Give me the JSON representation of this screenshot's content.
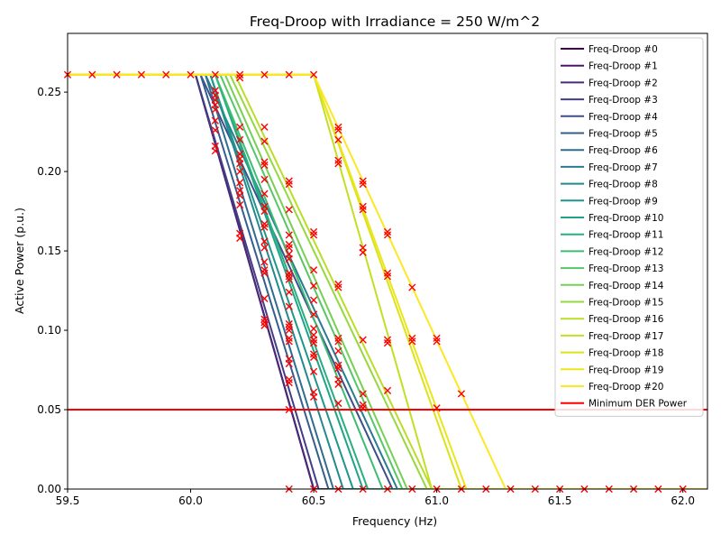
{
  "chart_data": {
    "type": "line",
    "title": "Freq-Droop with Irradiance = 250 W/m^2",
    "xlabel": "Frequency (Hz)",
    "ylabel": "Active Power (p.u.)",
    "xlim": [
      59.5,
      62.1
    ],
    "ylim": [
      0.0,
      0.287
    ],
    "xticks": [
      59.5,
      60.0,
      60.5,
      61.0,
      61.5,
      62.0
    ],
    "xtick_labels": [
      "59.5",
      "60.0",
      "60.5",
      "61.0",
      "61.5",
      "62.0"
    ],
    "yticks": [
      0.0,
      0.05,
      0.1,
      0.15,
      0.2,
      0.25
    ],
    "ytick_labels": [
      "0.00",
      "0.05",
      "0.10",
      "0.15",
      "0.20",
      "0.25"
    ],
    "grid": false,
    "legend_position": "top-right",
    "p_max": 0.261,
    "series": [
      {
        "name": "Freq-Droop #0",
        "color": "#440154",
        "knee": 60.02,
        "zero": 60.5
      },
      {
        "name": "Freq-Droop #1",
        "color": "#481769",
        "knee": 60.02,
        "zero": 60.5
      },
      {
        "name": "Freq-Droop #2",
        "color": "#472a7a",
        "knee": 60.02,
        "zero": 60.5
      },
      {
        "name": "Freq-Droop #3",
        "color": "#433d84",
        "knee": 60.02,
        "zero": 60.52
      },
      {
        "name": "Freq-Droop #4",
        "color": "#3d4e8a",
        "knee": 60.04,
        "zero": 60.82
      },
      {
        "name": "Freq-Droop #5",
        "color": "#355e8d",
        "knee": 60.04,
        "zero": 60.56
      },
      {
        "name": "Freq-Droop #6",
        "color": "#2e6d8e",
        "knee": 60.06,
        "zero": 60.58
      },
      {
        "name": "Freq-Droop #7",
        "color": "#297b8e",
        "knee": 60.06,
        "zero": 60.84
      },
      {
        "name": "Freq-Droop #8",
        "color": "#23898e",
        "knee": 60.08,
        "zero": 60.62
      },
      {
        "name": "Freq-Droop #9",
        "color": "#1f968b",
        "knee": 60.08,
        "zero": 60.66
      },
      {
        "name": "Freq-Droop #10",
        "color": "#20a386",
        "knee": 60.1,
        "zero": 60.7
      },
      {
        "name": "Freq-Droop #11",
        "color": "#29af7f",
        "knee": 60.1,
        "zero": 60.72
      },
      {
        "name": "Freq-Droop #12",
        "color": "#3dbc74",
        "knee": 60.1,
        "zero": 60.78
      },
      {
        "name": "Freq-Droop #13",
        "color": "#56c667",
        "knee": 60.12,
        "zero": 60.86
      },
      {
        "name": "Freq-Droop #14",
        "color": "#75d054",
        "knee": 60.14,
        "zero": 60.88
      },
      {
        "name": "Freq-Droop #15",
        "color": "#95d840",
        "knee": 60.16,
        "zero": 60.96
      },
      {
        "name": "Freq-Droop #16",
        "color": "#bade28",
        "knee": 60.18,
        "zero": 60.98
      },
      {
        "name": "Freq-Droop #17",
        "color": "#c2df23",
        "knee": 60.5,
        "zero": 60.98
      },
      {
        "name": "Freq-Droop #18",
        "color": "#dae319",
        "knee": 60.5,
        "zero": 61.1
      },
      {
        "name": "Freq-Droop #19",
        "color": "#ece51b",
        "knee": 60.5,
        "zero": 61.12
      },
      {
        "name": "Freq-Droop #20",
        "color": "#fde725",
        "knee": 60.5,
        "zero": 61.28
      }
    ],
    "min_power_line": {
      "name": "Minimum DER Power",
      "value": 0.05,
      "color": "#ff0000"
    },
    "marker": {
      "shape": "x",
      "color": "#ff0000"
    },
    "markers": [
      [
        59.5,
        0.261
      ],
      [
        59.6,
        0.261
      ],
      [
        59.7,
        0.261
      ],
      [
        59.8,
        0.261
      ],
      [
        59.9,
        0.261
      ],
      [
        60.0,
        0.261
      ],
      [
        60.1,
        0.261
      ],
      [
        60.2,
        0.261
      ],
      [
        60.2,
        0.259
      ],
      [
        60.3,
        0.261
      ],
      [
        60.4,
        0.261
      ],
      [
        60.5,
        0.261
      ],
      [
        60.1,
        0.251
      ],
      [
        60.1,
        0.248
      ],
      [
        60.1,
        0.245
      ],
      [
        60.1,
        0.242
      ],
      [
        60.1,
        0.239
      ],
      [
        60.1,
        0.232
      ],
      [
        60.1,
        0.226
      ],
      [
        60.1,
        0.216
      ],
      [
        60.1,
        0.213
      ],
      [
        60.2,
        0.228
      ],
      [
        60.2,
        0.22
      ],
      [
        60.2,
        0.211
      ],
      [
        60.2,
        0.208
      ],
      [
        60.2,
        0.205
      ],
      [
        60.2,
        0.2
      ],
      [
        60.2,
        0.193
      ],
      [
        60.2,
        0.188
      ],
      [
        60.2,
        0.185
      ],
      [
        60.2,
        0.179
      ],
      [
        60.2,
        0.161
      ],
      [
        60.2,
        0.158
      ],
      [
        60.3,
        0.228
      ],
      [
        60.3,
        0.219
      ],
      [
        60.3,
        0.206
      ],
      [
        60.3,
        0.204
      ],
      [
        60.3,
        0.195
      ],
      [
        60.3,
        0.186
      ],
      [
        60.3,
        0.178
      ],
      [
        60.3,
        0.175
      ],
      [
        60.3,
        0.167
      ],
      [
        60.3,
        0.165
      ],
      [
        60.3,
        0.156
      ],
      [
        60.3,
        0.152
      ],
      [
        60.3,
        0.143
      ],
      [
        60.3,
        0.138
      ],
      [
        60.3,
        0.136
      ],
      [
        60.3,
        0.12
      ],
      [
        60.3,
        0.107
      ],
      [
        60.3,
        0.105
      ],
      [
        60.3,
        0.103
      ],
      [
        60.4,
        0.194
      ],
      [
        60.4,
        0.192
      ],
      [
        60.4,
        0.176
      ],
      [
        60.4,
        0.16
      ],
      [
        60.4,
        0.154
      ],
      [
        60.4,
        0.152
      ],
      [
        60.4,
        0.148
      ],
      [
        60.4,
        0.145
      ],
      [
        60.4,
        0.136
      ],
      [
        60.4,
        0.134
      ],
      [
        60.4,
        0.132
      ],
      [
        60.4,
        0.124
      ],
      [
        60.4,
        0.115
      ],
      [
        60.4,
        0.104
      ],
      [
        60.4,
        0.102
      ],
      [
        60.4,
        0.1
      ],
      [
        60.4,
        0.095
      ],
      [
        60.4,
        0.093
      ],
      [
        60.4,
        0.082
      ],
      [
        60.4,
        0.079
      ],
      [
        60.4,
        0.069
      ],
      [
        60.4,
        0.067
      ],
      [
        60.4,
        0.05
      ],
      [
        60.4,
        0.0
      ],
      [
        60.5,
        0.162
      ],
      [
        60.5,
        0.16
      ],
      [
        60.5,
        0.138
      ],
      [
        60.5,
        0.128
      ],
      [
        60.5,
        0.119
      ],
      [
        60.5,
        0.11
      ],
      [
        60.5,
        0.101
      ],
      [
        60.5,
        0.097
      ],
      [
        60.5,
        0.094
      ],
      [
        60.5,
        0.092
      ],
      [
        60.5,
        0.085
      ],
      [
        60.5,
        0.083
      ],
      [
        60.5,
        0.074
      ],
      [
        60.5,
        0.061
      ],
      [
        60.5,
        0.058
      ],
      [
        60.5,
        0.0
      ],
      [
        60.6,
        0.228
      ],
      [
        60.6,
        0.226
      ],
      [
        60.6,
        0.22
      ],
      [
        60.6,
        0.207
      ],
      [
        60.6,
        0.205
      ],
      [
        60.6,
        0.129
      ],
      [
        60.6,
        0.127
      ],
      [
        60.6,
        0.095
      ],
      [
        60.6,
        0.093
      ],
      [
        60.6,
        0.087
      ],
      [
        60.6,
        0.078
      ],
      [
        60.6,
        0.076
      ],
      [
        60.6,
        0.069
      ],
      [
        60.6,
        0.066
      ],
      [
        60.6,
        0.054
      ],
      [
        60.6,
        0.0
      ],
      [
        60.7,
        0.194
      ],
      [
        60.7,
        0.192
      ],
      [
        60.7,
        0.178
      ],
      [
        60.7,
        0.176
      ],
      [
        60.7,
        0.152
      ],
      [
        60.7,
        0.149
      ],
      [
        60.7,
        0.094
      ],
      [
        60.7,
        0.06
      ],
      [
        60.7,
        0.053
      ],
      [
        60.7,
        0.051
      ],
      [
        60.7,
        0.0
      ],
      [
        60.8,
        0.162
      ],
      [
        60.8,
        0.16
      ],
      [
        60.8,
        0.136
      ],
      [
        60.8,
        0.134
      ],
      [
        60.8,
        0.094
      ],
      [
        60.8,
        0.092
      ],
      [
        60.8,
        0.062
      ],
      [
        60.8,
        0.0
      ],
      [
        60.9,
        0.127
      ],
      [
        60.9,
        0.095
      ],
      [
        60.9,
        0.093
      ],
      [
        60.9,
        0.0
      ],
      [
        61.0,
        0.095
      ],
      [
        61.0,
        0.093
      ],
      [
        61.0,
        0.051
      ],
      [
        61.0,
        0.0
      ],
      [
        61.1,
        0.06
      ],
      [
        61.1,
        0.0
      ],
      [
        61.2,
        0.0
      ],
      [
        61.3,
        0.0
      ],
      [
        61.4,
        0.0
      ],
      [
        61.5,
        0.0
      ],
      [
        61.6,
        0.0
      ],
      [
        61.7,
        0.0
      ],
      [
        61.8,
        0.0
      ],
      [
        61.9,
        0.0
      ],
      [
        62.0,
        0.0
      ]
    ]
  }
}
